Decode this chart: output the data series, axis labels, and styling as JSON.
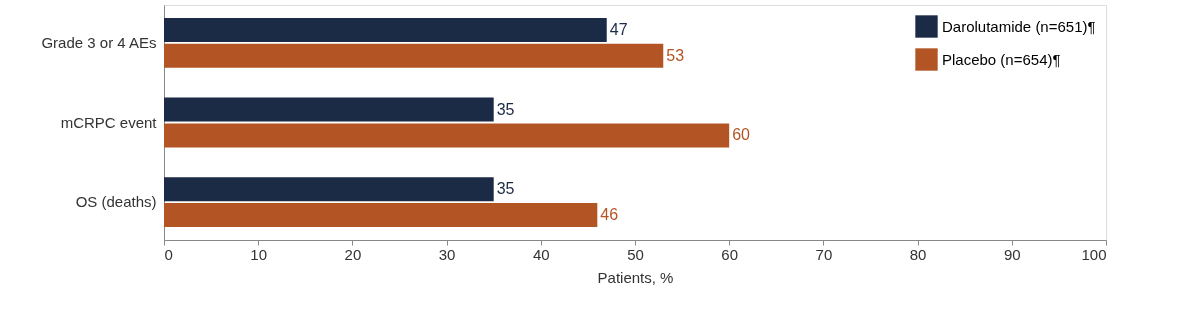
{
  "chart_data": {
    "type": "bar",
    "orientation": "horizontal",
    "xlabel": "Patients, %",
    "categories": [
      "Grade 3 or 4 AEs",
      "mCRPC event",
      "OS (deaths)"
    ],
    "series": [
      {
        "name": "Darolutamide (n=651)¶",
        "color": "#1b2a45",
        "values": [
          47,
          35,
          35
        ]
      },
      {
        "name": "Placebo (n=654)¶",
        "color": "#b35424",
        "values": [
          53,
          60,
          46
        ]
      }
    ],
    "xlim": [
      0,
      100
    ],
    "xticks": [
      0,
      10,
      20,
      30,
      40,
      50,
      60,
      70,
      80,
      90,
      100
    ],
    "data_labels": true,
    "legend": "top right",
    "grid": false
  }
}
